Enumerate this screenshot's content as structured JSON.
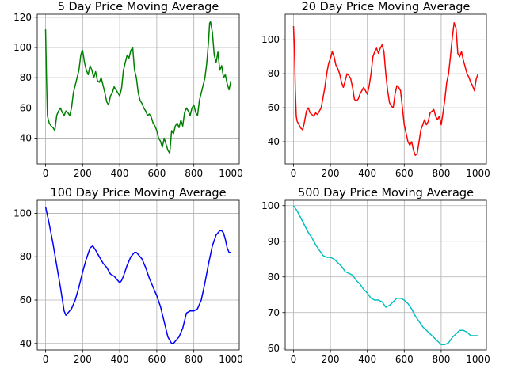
{
  "chart_data": [
    {
      "type": "line",
      "title": "5 Day Price Moving Average",
      "color": "#008000",
      "grid": true,
      "xlim": [
        -45,
        1045
      ],
      "ylim": [
        23,
        122
      ],
      "xticks": [
        0,
        200,
        400,
        600,
        800,
        1000
      ],
      "yticks": [
        40,
        60,
        80,
        100,
        120
      ],
      "x": [
        0,
        5,
        10,
        15,
        20,
        30,
        40,
        50,
        60,
        70,
        80,
        90,
        100,
        110,
        120,
        130,
        140,
        150,
        160,
        170,
        180,
        190,
        195,
        200,
        210,
        220,
        230,
        240,
        250,
        260,
        270,
        280,
        290,
        300,
        310,
        320,
        330,
        340,
        350,
        360,
        370,
        380,
        390,
        400,
        410,
        420,
        430,
        440,
        450,
        460,
        470,
        480,
        490,
        500,
        510,
        520,
        530,
        540,
        550,
        560,
        570,
        580,
        590,
        600,
        610,
        620,
        630,
        640,
        650,
        660,
        670,
        680,
        690,
        700,
        710,
        720,
        730,
        740,
        750,
        760,
        770,
        780,
        790,
        800,
        810,
        820,
        830,
        840,
        850,
        860,
        870,
        880,
        885,
        890,
        900,
        910,
        920,
        930,
        940,
        950,
        960,
        970,
        980,
        990,
        1000
      ],
      "y": [
        112,
        80,
        55,
        52,
        50,
        48,
        47,
        45,
        55,
        58,
        60,
        57,
        55,
        58,
        57,
        55,
        60,
        70,
        75,
        80,
        85,
        95,
        97,
        98,
        90,
        85,
        82,
        88,
        85,
        80,
        84,
        78,
        77,
        80,
        75,
        70,
        64,
        62,
        68,
        70,
        74,
        72,
        70,
        68,
        73,
        85,
        90,
        95,
        93,
        98,
        100,
        85,
        80,
        70,
        65,
        63,
        60,
        58,
        55,
        56,
        54,
        50,
        48,
        45,
        40,
        38,
        34,
        40,
        36,
        32,
        30,
        45,
        43,
        48,
        50,
        47,
        52,
        48,
        57,
        60,
        58,
        55,
        60,
        62,
        57,
        55,
        65,
        70,
        75,
        80,
        90,
        105,
        116,
        117,
        110,
        95,
        90,
        97,
        85,
        88,
        80,
        82,
        76,
        72,
        78
      ]
    },
    {
      "type": "line",
      "title": "20 Day Price Moving Average",
      "color": "#ff0000",
      "grid": true,
      "xlim": [
        -45,
        1045
      ],
      "ylim": [
        27,
        115
      ],
      "xticks": [
        0,
        200,
        400,
        600,
        800,
        1000
      ],
      "yticks": [
        40,
        60,
        80,
        100
      ],
      "x": [
        0,
        5,
        10,
        15,
        20,
        30,
        40,
        50,
        60,
        70,
        80,
        90,
        100,
        110,
        120,
        130,
        140,
        150,
        160,
        170,
        180,
        190,
        200,
        210,
        220,
        230,
        240,
        250,
        260,
        270,
        280,
        290,
        300,
        310,
        320,
        330,
        340,
        350,
        360,
        370,
        380,
        390,
        400,
        410,
        420,
        430,
        440,
        450,
        460,
        470,
        480,
        490,
        500,
        510,
        520,
        530,
        540,
        550,
        560,
        570,
        580,
        590,
        600,
        610,
        620,
        630,
        640,
        650,
        660,
        670,
        680,
        690,
        700,
        710,
        720,
        730,
        740,
        750,
        760,
        770,
        780,
        790,
        800,
        810,
        820,
        830,
        840,
        850,
        860,
        870,
        880,
        885,
        890,
        900,
        910,
        920,
        930,
        940,
        950,
        960,
        970,
        980,
        990,
        1000
      ],
      "y": [
        108,
        95,
        70,
        55,
        52,
        50,
        48,
        47,
        52,
        58,
        60,
        57,
        56,
        55,
        57,
        56,
        58,
        60,
        66,
        72,
        80,
        86,
        89,
        93,
        90,
        85,
        83,
        80,
        75,
        72,
        76,
        80,
        79,
        77,
        72,
        65,
        64,
        65,
        68,
        70,
        72,
        70,
        68,
        73,
        80,
        90,
        93,
        95,
        92,
        95,
        97,
        93,
        80,
        70,
        63,
        61,
        60,
        68,
        73,
        72,
        70,
        60,
        50,
        45,
        40,
        38,
        40,
        35,
        32,
        33,
        40,
        47,
        50,
        53,
        50,
        52,
        57,
        58,
        59,
        55,
        53,
        55,
        50,
        57,
        65,
        75,
        80,
        90,
        101,
        110,
        107,
        100,
        92,
        90,
        93,
        88,
        84,
        80,
        78,
        75,
        73,
        70,
        77,
        80
      ]
    },
    {
      "type": "line",
      "title": "100 Day Price Moving Average",
      "color": "#0000ff",
      "grid": true,
      "xlim": [
        -45,
        1045
      ],
      "ylim": [
        37,
        106
      ],
      "xticks": [
        0,
        200,
        400,
        600,
        800,
        1000
      ],
      "yticks": [
        40,
        60,
        80,
        100
      ],
      "x": [
        0,
        20,
        40,
        60,
        80,
        100,
        110,
        120,
        140,
        160,
        180,
        200,
        220,
        240,
        255,
        270,
        290,
        310,
        330,
        350,
        370,
        390,
        400,
        410,
        420,
        440,
        460,
        480,
        490,
        500,
        520,
        540,
        560,
        580,
        600,
        620,
        640,
        660,
        680,
        690,
        700,
        720,
        740,
        760,
        780,
        800,
        820,
        840,
        860,
        880,
        900,
        920,
        940,
        950,
        960,
        970,
        980,
        990,
        1000
      ],
      "y": [
        103,
        95,
        86,
        76,
        66,
        55,
        53,
        54,
        56,
        60,
        66,
        73,
        79,
        84,
        85,
        83,
        80,
        77,
        75,
        72,
        71,
        69,
        68,
        69,
        71,
        76,
        80,
        82,
        82,
        81,
        79,
        75,
        70,
        66,
        62,
        57,
        50,
        43,
        40,
        40,
        41,
        43,
        47,
        54,
        55,
        55,
        56,
        60,
        68,
        77,
        85,
        90,
        92,
        92,
        91,
        88,
        84,
        82,
        82
      ]
    },
    {
      "type": "line",
      "title": "500 Day Price Moving Average",
      "color": "#00bfbf",
      "grid": true,
      "xlim": [
        -45,
        1045
      ],
      "ylim": [
        59.5,
        101.5
      ],
      "xticks": [
        0,
        200,
        400,
        600,
        800,
        1000
      ],
      "yticks": [
        60,
        70,
        80,
        90,
        100
      ],
      "x": [
        0,
        20,
        40,
        60,
        80,
        100,
        120,
        140,
        160,
        180,
        200,
        220,
        240,
        260,
        280,
        300,
        320,
        340,
        360,
        380,
        400,
        420,
        440,
        460,
        480,
        500,
        520,
        540,
        560,
        580,
        600,
        620,
        640,
        660,
        680,
        700,
        720,
        740,
        760,
        780,
        800,
        820,
        840,
        860,
        880,
        900,
        920,
        940,
        960,
        980,
        1000
      ],
      "y": [
        100,
        98.5,
        96.5,
        94.5,
        92.5,
        91,
        89,
        87.5,
        86,
        85.5,
        85.5,
        85,
        84,
        83,
        81.5,
        81,
        80.5,
        79,
        78,
        76.5,
        75.5,
        74,
        73.5,
        73.5,
        73,
        71.5,
        72,
        73,
        74,
        74,
        73.5,
        72.5,
        71,
        69,
        67.5,
        66,
        65,
        64,
        63,
        62,
        61,
        61,
        61.5,
        63,
        64,
        65,
        65,
        64.5,
        63.5,
        63.5,
        63.5
      ]
    }
  ]
}
